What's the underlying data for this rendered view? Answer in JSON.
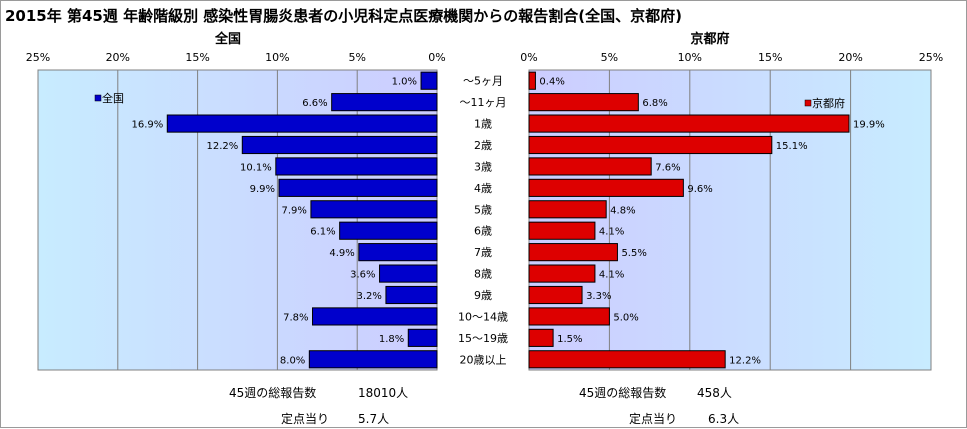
{
  "title": "2015年 第45週 年齢階級別 感染性胃腸炎患者の小児科定点医療機関からの報告割合(全国、京都府)",
  "colors": {
    "national": "#0000cc",
    "kyoto": "#dd0000",
    "plot_bg_left": "#c8ecff",
    "plot_bg_right": "#ccccff"
  },
  "chart_data": {
    "type": "bar",
    "orientation": "horizontal",
    "categories": [
      "～5ヶ月",
      "～11ヶ月",
      "1歳",
      "2歳",
      "3歳",
      "4歳",
      "5歳",
      "6歳",
      "7歳",
      "8歳",
      "9歳",
      "10～14歳",
      "15～19歳",
      "20歳以上"
    ],
    "xlim": [
      0,
      25
    ],
    "xticks": [
      "0%",
      "5%",
      "10%",
      "15%",
      "20%",
      "25%"
    ],
    "grid": true,
    "series": [
      {
        "name": "全国",
        "panel_title": "全国",
        "direction": "left",
        "color": "#0000cc",
        "values": [
          1.0,
          6.6,
          16.9,
          12.2,
          10.1,
          9.9,
          7.9,
          6.1,
          4.9,
          3.6,
          3.2,
          7.8,
          1.8,
          8.0
        ],
        "labels": [
          "1.0%",
          "6.6%",
          "16.9%",
          "12.2%",
          "10.1%",
          "9.9%",
          "7.9%",
          "6.1%",
          "4.9%",
          "3.6%",
          "3.2%",
          "7.8%",
          "1.8%",
          "8.0%"
        ]
      },
      {
        "name": "京都府",
        "panel_title": "京都府",
        "direction": "right",
        "color": "#dd0000",
        "values": [
          0.4,
          6.8,
          19.9,
          15.1,
          7.6,
          9.6,
          4.8,
          4.1,
          5.5,
          4.1,
          3.3,
          5.0,
          1.5,
          12.2
        ],
        "labels": [
          "0.4%",
          "6.8%",
          "19.9%",
          "15.1%",
          "7.6%",
          "9.6%",
          "4.8%",
          "4.1%",
          "5.5%",
          "4.1%",
          "3.3%",
          "5.0%",
          "1.5%",
          "12.2%"
        ]
      }
    ]
  },
  "summary": {
    "national": {
      "total_label": "45週の総報告数",
      "total_value": "18010人",
      "per_label": "定点当り",
      "per_value": "5.7人"
    },
    "kyoto": {
      "total_label": "45週の総報告数",
      "total_value": "458人",
      "per_label": "定点当り",
      "per_value": "6.3人"
    }
  }
}
